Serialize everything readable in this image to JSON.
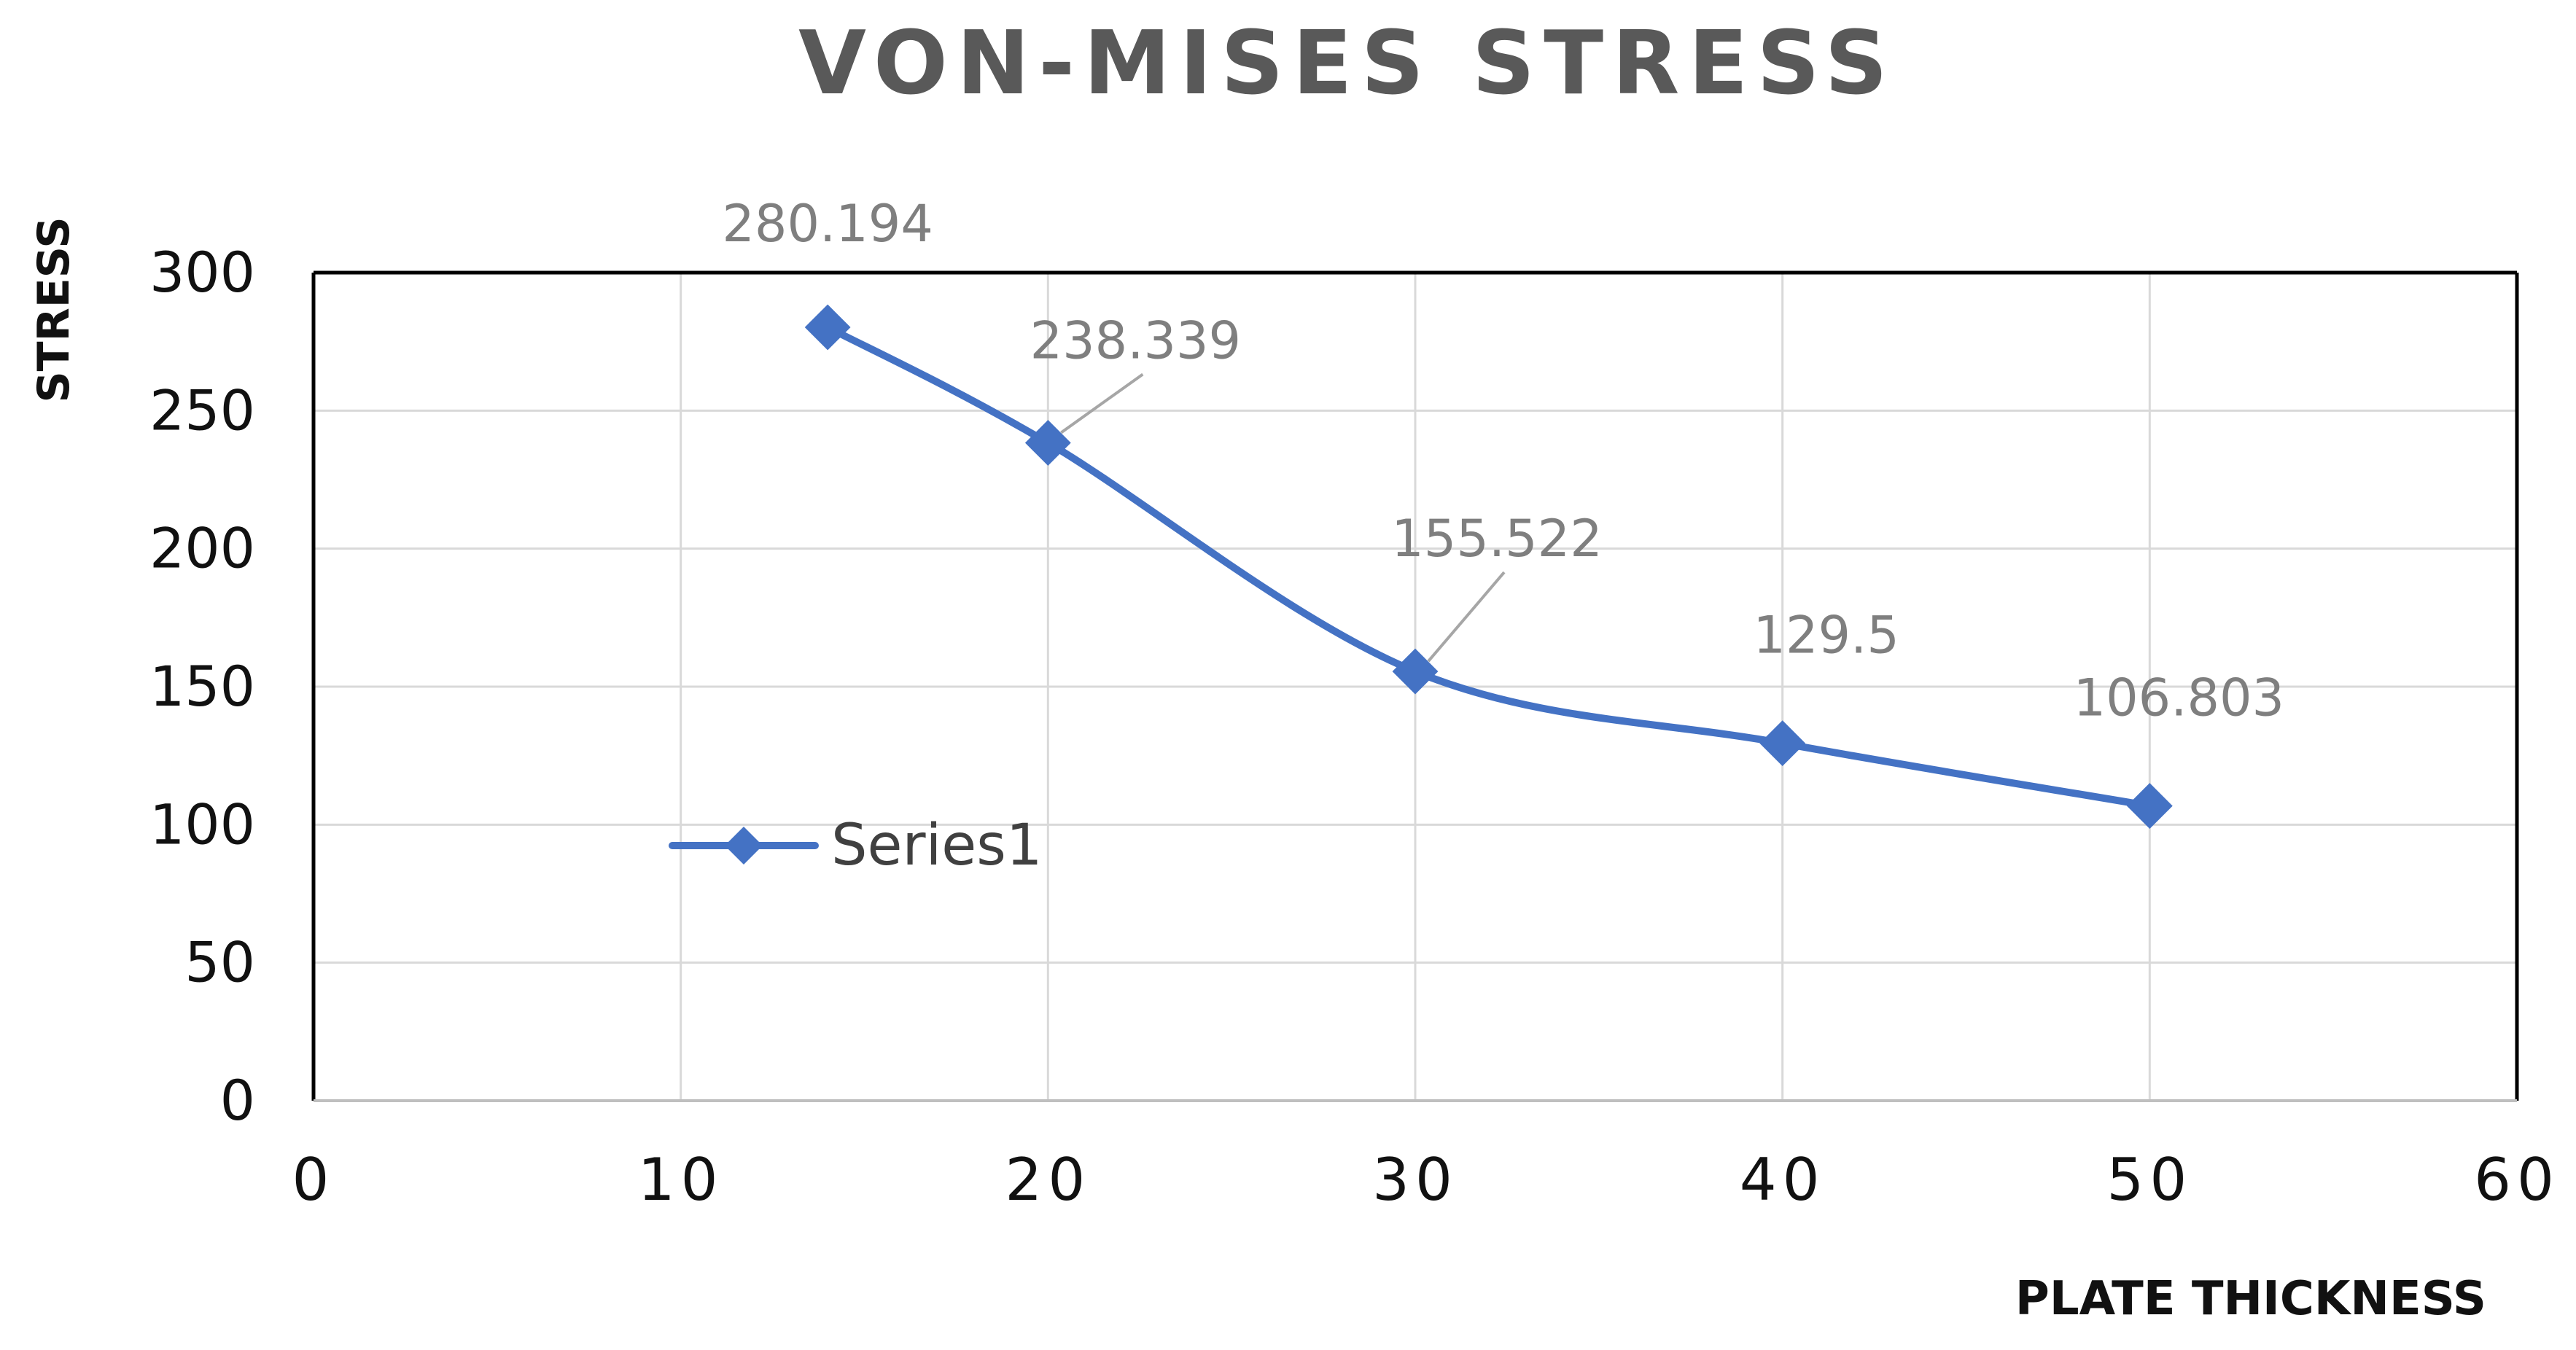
{
  "chart_data": {
    "type": "line",
    "title": "VON-MISES STRESS",
    "xlabel": "PLATE THICKNESS",
    "ylabel": "STRESS",
    "xlim": [
      0,
      60
    ],
    "ylim": [
      0,
      300
    ],
    "x_ticks": [
      "0",
      "10",
      "20",
      "30",
      "40",
      "50",
      "60"
    ],
    "y_ticks": [
      "0",
      "50",
      "100",
      "150",
      "200",
      "250",
      "300"
    ],
    "grid": true,
    "smoothed": true,
    "legend_position": "left-center",
    "series": [
      {
        "name": "Series1",
        "color": "#4472C4",
        "marker": "diamond",
        "x": [
          14,
          20,
          30,
          40,
          50
        ],
        "y": [
          280.194,
          238.339,
          155.522,
          129.5,
          106.803
        ],
        "labels": [
          "280.194",
          "238.339",
          "155.522",
          "129.5",
          "106.803"
        ]
      }
    ]
  }
}
